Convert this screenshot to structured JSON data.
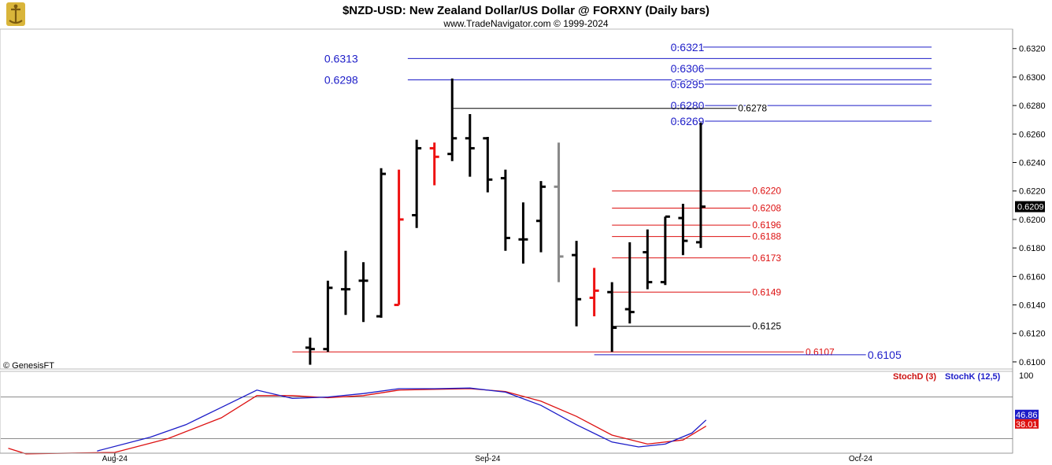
{
  "header": {
    "title": "$NZD-USD:  New Zealand Dollar/US Dollar @ FORXNY  (Daily bars)",
    "subtitle": "www.TradeNavigator.com © 1999-2024",
    "watermark": "© GenesisFT"
  },
  "chart_data": {
    "type": "ohlc",
    "price_axis": {
      "ylim": [
        0.6095,
        0.6332
      ],
      "ticks": [
        "0.6100",
        "0.6120",
        "0.6140",
        "0.6160",
        "0.6180",
        "0.6200",
        "0.6220",
        "0.6240",
        "0.6260",
        "0.6280",
        "0.6300",
        "0.6320"
      ],
      "last_price_label": "0.6209",
      "last_price": 0.6209
    },
    "time_axis": {
      "labels": [
        {
          "label": "Aug-24",
          "day": 6
        },
        {
          "label": "Sep-24",
          "day": 27
        },
        {
          "label": "Oct-24",
          "day": 48
        }
      ],
      "day_range": [
        -2,
        52
      ]
    },
    "bars": [
      {
        "day": 17,
        "o": 0.611,
        "h": 0.6117,
        "l": 0.6098,
        "c": 0.6109,
        "color": "#000000"
      },
      {
        "day": 18,
        "o": 0.6109,
        "h": 0.6157,
        "l": 0.6107,
        "c": 0.6152,
        "color": "#000000"
      },
      {
        "day": 19,
        "o": 0.6151,
        "h": 0.6178,
        "l": 0.6133,
        "c": 0.6151,
        "color": "#000000"
      },
      {
        "day": 20,
        "o": 0.6157,
        "h": 0.617,
        "l": 0.6128,
        "c": 0.6157,
        "color": "#000000"
      },
      {
        "day": 21,
        "o": 0.6132,
        "h": 0.6236,
        "l": 0.6131,
        "c": 0.6232,
        "color": "#000000"
      },
      {
        "day": 22,
        "o": 0.614,
        "h": 0.6235,
        "l": 0.614,
        "c": 0.62,
        "color": "#ee1111"
      },
      {
        "day": 23,
        "o": 0.6203,
        "h": 0.6256,
        "l": 0.6194,
        "c": 0.625,
        "color": "#000000"
      },
      {
        "day": 24,
        "o": 0.625,
        "h": 0.6254,
        "l": 0.6224,
        "c": 0.6244,
        "color": "#ee1111"
      },
      {
        "day": 25,
        "o": 0.6246,
        "h": 0.6299,
        "l": 0.6241,
        "c": 0.6257,
        "color": "#000000"
      },
      {
        "day": 26,
        "o": 0.6257,
        "h": 0.6274,
        "l": 0.623,
        "c": 0.625,
        "color": "#000000"
      },
      {
        "day": 27,
        "o": 0.6257,
        "h": 0.6258,
        "l": 0.6219,
        "c": 0.6228,
        "color": "#000000"
      },
      {
        "day": 28,
        "o": 0.6229,
        "h": 0.6235,
        "l": 0.6178,
        "c": 0.6187,
        "color": "#000000"
      },
      {
        "day": 29,
        "o": 0.6186,
        "h": 0.6212,
        "l": 0.6169,
        "c": 0.6186,
        "color": "#000000"
      },
      {
        "day": 30,
        "o": 0.6199,
        "h": 0.6227,
        "l": 0.6177,
        "c": 0.6223,
        "color": "#000000"
      },
      {
        "day": 31,
        "o": 0.6223,
        "h": 0.6254,
        "l": 0.6156,
        "c": 0.6174,
        "color": "#888888"
      },
      {
        "day": 32,
        "o": 0.6175,
        "h": 0.6185,
        "l": 0.6125,
        "c": 0.6144,
        "color": "#000000"
      },
      {
        "day": 33,
        "o": 0.6145,
        "h": 0.6166,
        "l": 0.6132,
        "c": 0.615,
        "color": "#ee1111"
      },
      {
        "day": 34,
        "o": 0.6149,
        "h": 0.6156,
        "l": 0.6107,
        "c": 0.6124,
        "color": "#000000"
      },
      {
        "day": 35,
        "o": 0.6137,
        "h": 0.6184,
        "l": 0.6127,
        "c": 0.6135,
        "color": "#000000"
      },
      {
        "day": 36,
        "o": 0.6177,
        "h": 0.6193,
        "l": 0.6151,
        "c": 0.6156,
        "color": "#000000"
      },
      {
        "day": 37,
        "o": 0.6156,
        "h": 0.6202,
        "l": 0.6154,
        "c": 0.6202,
        "color": "#000000"
      },
      {
        "day": 38,
        "o": 0.6201,
        "h": 0.6211,
        "l": 0.6175,
        "c": 0.6185,
        "color": "#000000"
      },
      {
        "day": 39,
        "o": 0.6184,
        "h": 0.6268,
        "l": 0.618,
        "c": 0.6209,
        "color": "#000000"
      }
    ],
    "levels": [
      {
        "price": 0.6321,
        "label": "0.6321",
        "color": "#1c1cc8",
        "from_day": 37.3,
        "to_day": 52,
        "label_day": 37.3,
        "label_size": "big"
      },
      {
        "price": 0.6313,
        "label": "0.6313",
        "color": "#1c1cc8",
        "from_day": 22.5,
        "to_day": 52,
        "label_day": 17.8,
        "label_size": "big"
      },
      {
        "price": 0.6306,
        "label": "0.6306",
        "color": "#1c1cc8",
        "from_day": 37.3,
        "to_day": 52,
        "label_day": 37.3,
        "label_size": "big"
      },
      {
        "price": 0.6298,
        "label": "0.6298",
        "color": "#1c1cc8",
        "from_day": 22.5,
        "to_day": 52,
        "label_day": 17.8,
        "label_size": "big"
      },
      {
        "price": 0.6295,
        "label": "0.6295",
        "color": "#1c1cc8",
        "from_day": 37.3,
        "to_day": 52,
        "label_day": 37.3,
        "label_size": "big"
      },
      {
        "price": 0.628,
        "label": "0.6280",
        "color": "#1c1cc8",
        "from_day": 37.3,
        "to_day": 52,
        "label_day": 37.3,
        "label_size": "big"
      },
      {
        "price": 0.6278,
        "label": "0.6278",
        "color": "#000000",
        "from_day": 25,
        "to_day": 41,
        "label_day": 41.1,
        "label_size": "small"
      },
      {
        "price": 0.6269,
        "label": "0.6269",
        "color": "#1c1cc8",
        "from_day": 37.3,
        "to_day": 52,
        "label_day": 37.3,
        "label_size": "big"
      },
      {
        "price": 0.622,
        "label": "0.6220",
        "color": "#dd1111",
        "from_day": 34,
        "to_day": 41.8,
        "label_day": 41.9,
        "label_size": "small"
      },
      {
        "price": 0.6208,
        "label": "0.6208",
        "color": "#dd1111",
        "from_day": 34,
        "to_day": 41.8,
        "label_day": 41.9,
        "label_size": "small"
      },
      {
        "price": 0.6196,
        "label": "0.6196",
        "color": "#dd1111",
        "from_day": 34,
        "to_day": 41.8,
        "label_day": 41.9,
        "label_size": "small"
      },
      {
        "price": 0.6188,
        "label": "0.6188",
        "color": "#dd1111",
        "from_day": 34,
        "to_day": 41.8,
        "label_day": 41.9,
        "label_size": "small"
      },
      {
        "price": 0.6173,
        "label": "0.6173",
        "color": "#dd1111",
        "from_day": 34,
        "to_day": 41.8,
        "label_day": 41.9,
        "label_size": "small"
      },
      {
        "price": 0.6149,
        "label": "0.6149",
        "color": "#dd1111",
        "from_day": 34,
        "to_day": 41.8,
        "label_day": 41.9,
        "label_size": "small"
      },
      {
        "price": 0.6125,
        "label": "0.6125",
        "color": "#000000",
        "from_day": 34,
        "to_day": 41.8,
        "label_day": 41.9,
        "label_size": "small"
      },
      {
        "price": 0.6107,
        "label": "0.6107",
        "color": "#dd1111",
        "from_day": 16,
        "to_day": 44.8,
        "label_day": 44.9,
        "label_size": "small"
      },
      {
        "price": 0.6105,
        "label": "0.6105",
        "color": "#1c1cc8",
        "from_day": 33,
        "to_day": 48.3,
        "label_day": 48.4,
        "label_size": "big"
      }
    ],
    "stochastic": {
      "ylim": [
        0,
        100
      ],
      "top_label": "100",
      "ref_lines": [
        80,
        20
      ],
      "legend": [
        {
          "label": "StochD (3)",
          "color": "#cc1111"
        },
        {
          "label": "StochK (12,5)",
          "color": "#1c1cc8"
        }
      ],
      "k_label": "46.86",
      "d_label": "38.01",
      "k": [
        {
          "day": 5,
          "v": 2
        },
        {
          "day": 8,
          "v": 22
        },
        {
          "day": 10,
          "v": 40
        },
        {
          "day": 12,
          "v": 65
        },
        {
          "day": 14,
          "v": 90
        },
        {
          "day": 16,
          "v": 78
        },
        {
          "day": 18,
          "v": 80
        },
        {
          "day": 20,
          "v": 85
        },
        {
          "day": 22,
          "v": 92
        },
        {
          "day": 24,
          "v": 92
        },
        {
          "day": 26,
          "v": 93
        },
        {
          "day": 28,
          "v": 87
        },
        {
          "day": 30,
          "v": 68
        },
        {
          "day": 32,
          "v": 40
        },
        {
          "day": 34,
          "v": 15
        },
        {
          "day": 35.5,
          "v": 8
        },
        {
          "day": 37,
          "v": 12
        },
        {
          "day": 38.5,
          "v": 28
        },
        {
          "day": 39.3,
          "v": 46.86
        }
      ],
      "d": [
        {
          "day": 0,
          "v": 6
        },
        {
          "day": 1,
          "v": -2
        },
        {
          "day": 6,
          "v": 0
        },
        {
          "day": 9,
          "v": 20
        },
        {
          "day": 12,
          "v": 50
        },
        {
          "day": 14,
          "v": 82
        },
        {
          "day": 16,
          "v": 82
        },
        {
          "day": 18,
          "v": 79
        },
        {
          "day": 20,
          "v": 82
        },
        {
          "day": 22,
          "v": 90
        },
        {
          "day": 24,
          "v": 91
        },
        {
          "day": 26,
          "v": 92
        },
        {
          "day": 28,
          "v": 88
        },
        {
          "day": 30,
          "v": 74
        },
        {
          "day": 32,
          "v": 52
        },
        {
          "day": 34,
          "v": 25
        },
        {
          "day": 36,
          "v": 12
        },
        {
          "day": 38,
          "v": 18
        },
        {
          "day": 39.3,
          "v": 38.01
        }
      ]
    }
  }
}
